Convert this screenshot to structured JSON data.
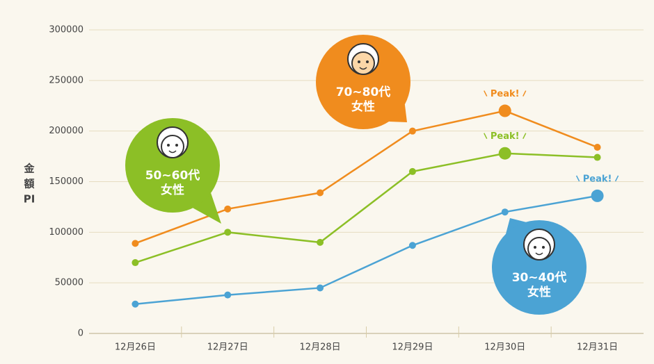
{
  "chart_data": {
    "type": "line",
    "ylabel": [
      "金",
      "額",
      "PI"
    ],
    "categories": [
      "12月26日",
      "12月27日",
      "12月28日",
      "12月29日",
      "12月30日",
      "12月31日"
    ],
    "series": [
      {
        "label": [
          "70~80代",
          "女性"
        ],
        "color": "#f08c1e",
        "values": [
          89000,
          123000,
          139000,
          200000,
          220000,
          184000
        ],
        "peak_label": "Peak!"
      },
      {
        "label": [
          "50~60代",
          "女性"
        ],
        "color": "#8cbf26",
        "values": [
          70000,
          100000,
          90000,
          160000,
          178000,
          174000
        ],
        "peak_label": "Peak!"
      },
      {
        "label": [
          "30~40代",
          "女性"
        ],
        "color": "#4ba3d4",
        "values": [
          29000,
          38000,
          45000,
          87000,
          120000,
          136000
        ],
        "peak_label": "Peak!"
      }
    ],
    "ylim": [
      0,
      300000
    ],
    "yticks": [
      0,
      50000,
      100000,
      150000,
      200000,
      250000,
      300000
    ],
    "grid": true
  }
}
